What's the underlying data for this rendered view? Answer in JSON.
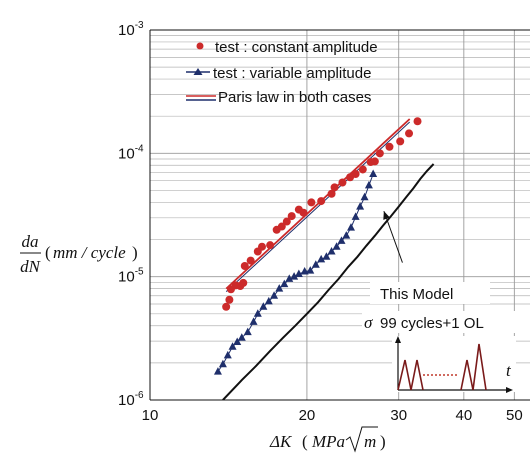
{
  "chart_data": {
    "type": "scatter",
    "x_scale": "log",
    "y_scale": "log",
    "xlim": [
      10,
      56
    ],
    "ylim": [
      1e-06,
      0.001
    ],
    "x_ticks": [
      "10",
      "20",
      "30",
      "40",
      "50"
    ],
    "y_ticks": [
      {
        "base": "10",
        "exp": "-6"
      },
      {
        "base": "10",
        "exp": "-5"
      },
      {
        "base": "10",
        "exp": "-4"
      },
      {
        "base": "10",
        "exp": "-3"
      }
    ],
    "xlabel": {
      "delta": "ΔK",
      "unit": "MPa",
      "root": "m"
    },
    "ylabel": {
      "num": "da",
      "den": "dN",
      "unit": "mm / cycle"
    },
    "grid": true,
    "legend": {
      "position": "top-left",
      "entries": [
        {
          "label": "test : constant amplitude",
          "marker": "circle",
          "color": "#cc2a2a"
        },
        {
          "label": "test : variable amplitude",
          "marker": "triangle",
          "color": "#1f2f6b"
        },
        {
          "label": "Paris law in both cases",
          "marker": "line",
          "color": "#cc2a2a"
        }
      ]
    },
    "series": [
      {
        "name": "test : constant amplitude",
        "marker": "circle",
        "color": "#cc2a2a",
        "points": [
          [
            14.0,
            5.7e-06
          ],
          [
            14.2,
            6.5e-06
          ],
          [
            14.3,
            7.9e-06
          ],
          [
            14.6,
            8.5e-06
          ],
          [
            14.9,
            8.4e-06
          ],
          [
            15.1,
            8.9e-06
          ],
          [
            15.2,
            1.22e-05
          ],
          [
            15.6,
            1.35e-05
          ],
          [
            16.1,
            1.6e-05
          ],
          [
            16.4,
            1.75e-05
          ],
          [
            17.0,
            1.8e-05
          ],
          [
            17.5,
            2.4e-05
          ],
          [
            17.9,
            2.55e-05
          ],
          [
            18.3,
            2.8e-05
          ],
          [
            18.7,
            3.1e-05
          ],
          [
            19.3,
            3.5e-05
          ],
          [
            19.7,
            3.3e-05
          ],
          [
            20.4,
            4e-05
          ],
          [
            21.3,
            4.1e-05
          ],
          [
            22.3,
            4.7e-05
          ],
          [
            22.6,
            5.3e-05
          ],
          [
            23.4,
            5.8e-05
          ],
          [
            24.2,
            6.4e-05
          ],
          [
            24.8,
            6.8e-05
          ],
          [
            25.6,
            7.4e-05
          ],
          [
            26.5,
            8.5e-05
          ],
          [
            27.0,
            8.6e-05
          ],
          [
            27.6,
            0.0001
          ],
          [
            28.8,
            0.000113
          ],
          [
            30.2,
            0.000125
          ],
          [
            31.4,
            0.000145
          ],
          [
            32.6,
            0.000182
          ]
        ]
      },
      {
        "name": "test : variable amplitude",
        "marker": "triangle",
        "color": "#1f2f6b",
        "points": [
          [
            13.5,
            1.7e-06
          ],
          [
            13.8,
            1.95e-06
          ],
          [
            14.1,
            2.3e-06
          ],
          [
            14.4,
            2.7e-06
          ],
          [
            14.7,
            2.95e-06
          ],
          [
            15.0,
            3.2e-06
          ],
          [
            15.4,
            3.55e-06
          ],
          [
            15.8,
            4.3e-06
          ],
          [
            16.1,
            5e-06
          ],
          [
            16.5,
            5.7e-06
          ],
          [
            16.9,
            6.3e-06
          ],
          [
            17.3,
            7e-06
          ],
          [
            17.7,
            8e-06
          ],
          [
            18.1,
            8.7e-06
          ],
          [
            18.5,
            9.6e-06
          ],
          [
            18.9,
            1e-05
          ],
          [
            19.3,
            1.05e-05
          ],
          [
            19.8,
            1.1e-05
          ],
          [
            20.3,
            1.12e-05
          ],
          [
            20.8,
            1.25e-05
          ],
          [
            21.3,
            1.38e-05
          ],
          [
            21.8,
            1.45e-05
          ],
          [
            22.3,
            1.6e-05
          ],
          [
            22.8,
            1.75e-05
          ],
          [
            23.3,
            1.95e-05
          ],
          [
            23.8,
            2.15e-05
          ],
          [
            24.3,
            2.5e-05
          ],
          [
            24.8,
            3.05e-05
          ],
          [
            25.3,
            3.7e-05
          ],
          [
            25.8,
            4.4e-05
          ],
          [
            26.3,
            5.5e-05
          ],
          [
            26.8,
            6.8e-05
          ]
        ]
      },
      {
        "name": "Paris law in both cases",
        "type": "line",
        "color": "#cc2a2a",
        "points": [
          [
            14.0,
            8e-06
          ],
          [
            31.5,
            0.00019
          ]
        ]
      },
      {
        "name": "This Model",
        "type": "line",
        "color": "#111111",
        "points": [
          [
            13.8,
            1e-06
          ],
          [
            15,
            1.45e-06
          ],
          [
            16,
            1.9e-06
          ],
          [
            17,
            2.5e-06
          ],
          [
            18,
            3.2e-06
          ],
          [
            19,
            4e-06
          ],
          [
            20,
            5e-06
          ],
          [
            21,
            6.2e-06
          ],
          [
            22,
            7.8e-06
          ],
          [
            23,
            9.6e-06
          ],
          [
            24,
            1.2e-05
          ],
          [
            25,
            1.45e-05
          ],
          [
            26,
            1.78e-05
          ],
          [
            27,
            2.15e-05
          ],
          [
            28,
            2.6e-05
          ],
          [
            29,
            3.1e-05
          ],
          [
            30,
            3.7e-05
          ],
          [
            31,
            4.4e-05
          ],
          [
            32,
            5.2e-05
          ],
          [
            33,
            6.2e-05
          ],
          [
            34,
            7.2e-05
          ],
          [
            35,
            8.2e-05
          ]
        ]
      }
    ],
    "annotations": {
      "model_label": "This Model",
      "model_arrow_from": [
        30.5,
        1.3e-05
      ],
      "model_arrow_to": [
        28.1,
        3.4e-05
      ],
      "sigma_symbol": "σ",
      "loading_label": "99 cycles+1 OL",
      "time_symbol": "t"
    }
  }
}
